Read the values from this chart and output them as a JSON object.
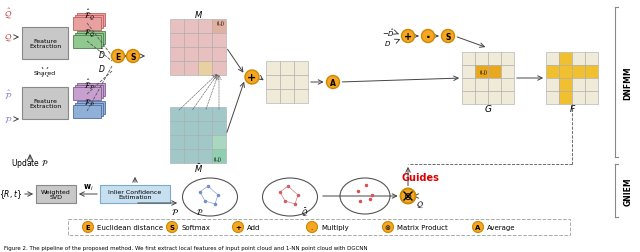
{
  "bg_color": "#ffffff",
  "orange_btn": "#f5a623",
  "orange_btn_edge": "#cc8800",
  "gray_box": "#c8c8c8",
  "gray_box_edge": "#888888",
  "blue_box": "#c8dff0",
  "blue_box_edge": "#7aabcc",
  "pink_feat": "#e8a0a0",
  "green_feat": "#90c890",
  "purple_feat": "#c8a0d0",
  "blue_feat": "#90b0d8",
  "matrix_pink": "#e8c0c0",
  "matrix_green": "#a8c8a8",
  "matrix_teal": "#90c0c0",
  "matrix_tan": "#e8e0c0",
  "matrix_gold": "#e8a820",
  "matrix_light": "#f0ead8",
  "matrix_highlight": "#f0c030",
  "red_color": "#dd0000",
  "arrow_color": "#444444",
  "dnfmm_label": "DNFMM",
  "gnem_label": "GNIEM",
  "caption": "Figure 2. The pipeline of the proposed method. We first extract local features of input point cloud and 1-NN point cloud with DGCNN"
}
